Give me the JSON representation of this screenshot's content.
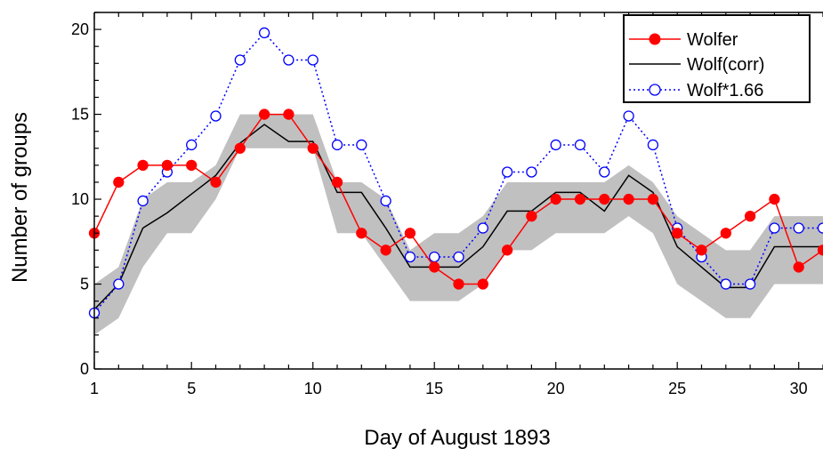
{
  "colors": {
    "wolfer": "#ff0000",
    "wolf_corr": "#000000",
    "wolf_scaled": "#0000ff",
    "band": "#c0c0c0"
  },
  "chart_data": {
    "type": "line",
    "xlabel": "Day of August 1893",
    "ylabel": "Number of groups",
    "xlim": [
      1,
      31
    ],
    "ylim": [
      0,
      21
    ],
    "x_major_ticks": [
      1,
      5,
      10,
      15,
      20,
      25,
      30
    ],
    "y_major_ticks": [
      0,
      5,
      10,
      15,
      20
    ],
    "legend_position": "top-right",
    "band": {
      "x": [
        1,
        2,
        3,
        4,
        5,
        6,
        7,
        8,
        9,
        10,
        11,
        12,
        13,
        14,
        15,
        16,
        17,
        18,
        19,
        20,
        21,
        22,
        23,
        24,
        25,
        26,
        27,
        28,
        29,
        30,
        31
      ],
      "lower": [
        2,
        3,
        6,
        8,
        8,
        10,
        13,
        13,
        13,
        13,
        8,
        8,
        6,
        4,
        4,
        4,
        5,
        7,
        7,
        8,
        8,
        8,
        9,
        8,
        5,
        4,
        3,
        3,
        5,
        5,
        5
      ],
      "upper": [
        5,
        6,
        10,
        11,
        11,
        12,
        15,
        15,
        15,
        15,
        11,
        11,
        10,
        7,
        8,
        8,
        9,
        11,
        11,
        11,
        11,
        11,
        12,
        11,
        9,
        8,
        7,
        7,
        9,
        9,
        9
      ]
    },
    "series": [
      {
        "name": "Wolfer",
        "style": "red solid line, filled circles",
        "x": [
          1,
          2,
          3,
          4,
          5,
          6,
          7,
          8,
          9,
          10,
          11,
          12,
          13,
          14,
          15,
          16,
          17,
          18,
          19,
          20,
          21,
          22,
          23,
          24,
          25,
          26,
          27,
          28,
          29,
          30,
          31
        ],
        "values": [
          8,
          11,
          12,
          12,
          12,
          11,
          13,
          15,
          15,
          13,
          11,
          8,
          7,
          8,
          6,
          5,
          5,
          7,
          9,
          10,
          10,
          10,
          10,
          10,
          8,
          7,
          8,
          9,
          10,
          6,
          7
        ]
      },
      {
        "name": "Wolf(corr)",
        "style": "black solid line",
        "x": [
          1,
          2,
          3,
          4,
          5,
          6,
          7,
          8,
          9,
          10,
          11,
          12,
          13,
          14,
          15,
          16,
          17,
          18,
          19,
          20,
          21,
          22,
          23,
          24,
          25,
          26,
          27,
          28,
          29,
          30,
          31
        ],
        "values": [
          3.5,
          5,
          8.3,
          9.2,
          10.3,
          11.4,
          13.3,
          14.4,
          13.4,
          13.4,
          10.4,
          10.4,
          8.3,
          6.0,
          6.0,
          6.0,
          7.2,
          9.3,
          9.3,
          10.4,
          10.4,
          9.3,
          11.4,
          10.4,
          7.2,
          6.0,
          4.8,
          4.8,
          7.2,
          7.2,
          7.2
        ]
      },
      {
        "name": "Wolf*1.66",
        "style": "blue dotted line, open circles",
        "x": [
          1,
          2,
          3,
          4,
          5,
          6,
          7,
          8,
          9,
          10,
          11,
          12,
          13,
          14,
          15,
          16,
          17,
          18,
          19,
          20,
          21,
          22,
          23,
          24,
          25,
          26,
          27,
          28,
          29,
          30,
          31
        ],
        "values": [
          3.3,
          5,
          9.9,
          11.6,
          13.2,
          14.9,
          18.2,
          19.8,
          18.2,
          18.2,
          13.2,
          13.2,
          9.9,
          6.6,
          6.6,
          6.6,
          8.3,
          11.6,
          11.6,
          13.2,
          13.2,
          11.6,
          14.9,
          13.2,
          8.3,
          6.6,
          5,
          5,
          8.3,
          8.3,
          8.3
        ]
      }
    ]
  }
}
